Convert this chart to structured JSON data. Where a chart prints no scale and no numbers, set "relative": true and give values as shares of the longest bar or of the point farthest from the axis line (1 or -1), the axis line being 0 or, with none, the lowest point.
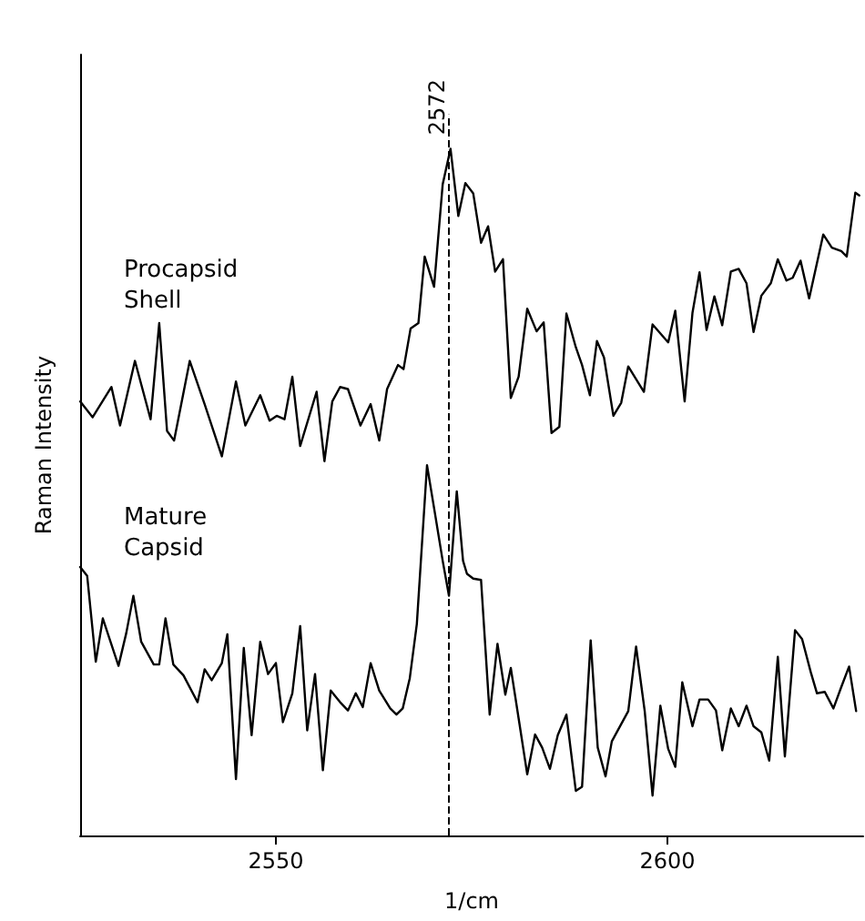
{
  "chart_data": {
    "type": "line",
    "xlabel": "1/cm",
    "ylabel": "Raman Intensity",
    "relative": true,
    "xlim": [
      2525,
      2625
    ],
    "xticks": [
      2550,
      2600
    ],
    "tick_labels": "x",
    "grid": false,
    "legend": false,
    "marker": "none",
    "line_style": "solid",
    "ref_lines": [
      {
        "axis": "x",
        "value": 2572,
        "label": "2572",
        "line_style": "dashed",
        "color": "#000000"
      }
    ],
    "series": [
      {
        "name": "Procapsid Shell",
        "color": "#000000",
        "x": [
          2525,
          2526.6,
          2529.0,
          2530.1,
          2532.0,
          2534.0,
          2535.1,
          2536.1,
          2537.0,
          2539.0,
          2540.9,
          2543.1,
          2544.9,
          2546.1,
          2548.0,
          2549.2,
          2550.1,
          2551.1,
          2552.1,
          2553.1,
          2555.2,
          2556.2,
          2557.2,
          2558.2,
          2559.2,
          2560.8,
          2562.1,
          2563.2,
          2564.2,
          2565.6,
          2566.3,
          2567.2,
          2568.2,
          2569.0,
          2570.2,
          2571.3,
          2572.3,
          2573.3,
          2574.2,
          2575.2,
          2576.2,
          2577.1,
          2578.0,
          2579.0,
          2580.0,
          2581.0,
          2582.1,
          2583.3,
          2584.2,
          2585.2,
          2586.2,
          2587.1,
          2588.3,
          2589.1,
          2590.1,
          2591.0,
          2591.9,
          2593.1,
          2594.1,
          2595.0,
          2597.0,
          2598.1,
          2600.1,
          2601.0,
          2602.2,
          2603.2,
          2604.1,
          2605.0,
          2606.0,
          2607.0,
          2608.1,
          2609.1,
          2610.1,
          2611.0,
          2612.0,
          2613.2,
          2614.1,
          2615.2,
          2616.0,
          2617.0,
          2618.1,
          2619.9,
          2621.0,
          2622.2,
          2622.9,
          2624.0,
          2624.5
        ],
        "values": [
          0.632,
          0.609,
          0.653,
          0.597,
          0.691,
          0.606,
          0.746,
          0.589,
          0.575,
          0.691,
          0.628,
          0.552,
          0.661,
          0.597,
          0.641,
          0.604,
          0.611,
          0.606,
          0.668,
          0.567,
          0.646,
          0.545,
          0.632,
          0.653,
          0.65,
          0.597,
          0.628,
          0.575,
          0.65,
          0.685,
          0.679,
          0.738,
          0.746,
          0.843,
          0.799,
          0.948,
          1.0,
          0.902,
          0.95,
          0.935,
          0.863,
          0.887,
          0.821,
          0.839,
          0.637,
          0.668,
          0.767,
          0.734,
          0.747,
          0.586,
          0.595,
          0.76,
          0.711,
          0.685,
          0.641,
          0.72,
          0.696,
          0.611,
          0.63,
          0.683,
          0.646,
          0.744,
          0.718,
          0.764,
          0.632,
          0.761,
          0.82,
          0.736,
          0.785,
          0.743,
          0.821,
          0.825,
          0.804,
          0.733,
          0.786,
          0.804,
          0.839,
          0.808,
          0.812,
          0.837,
          0.782,
          0.875,
          0.856,
          0.851,
          0.843,
          0.936,
          0.932
        ]
      },
      {
        "name": "Mature Capsid",
        "color": "#000000",
        "x": [
          2525,
          2525.9,
          2527.0,
          2527.9,
          2529.9,
          2530.9,
          2531.8,
          2532.8,
          2534.4,
          2535.1,
          2535.9,
          2536.9,
          2538.2,
          2540.0,
          2540.9,
          2541.8,
          2543.1,
          2543.8,
          2544.9,
          2545.9,
          2546.9,
          2548.0,
          2549.0,
          2550.0,
          2550.9,
          2552.1,
          2553.1,
          2554.0,
          2555.0,
          2556.0,
          2557.0,
          2558.2,
          2559.2,
          2560.2,
          2561.1,
          2562.1,
          2563.2,
          2564.6,
          2565.4,
          2566.2,
          2567.1,
          2568.0,
          2569.3,
          2570.3,
          2571.3,
          2572.1,
          2573.1,
          2573.9,
          2574.4,
          2575.2,
          2576.2,
          2577.3,
          2578.3,
          2579.3,
          2580.0,
          2581.1,
          2582.1,
          2583.1,
          2584.0,
          2585.0,
          2586.0,
          2587.1,
          2588.3,
          2589.1,
          2590.2,
          2591.1,
          2592.1,
          2592.9,
          2595.0,
          2596.0,
          2597.1,
          2598.1,
          2599.1,
          2600.1,
          2601.0,
          2601.9,
          2603.2,
          2604.1,
          2605.2,
          2606.2,
          2607.0,
          2608.1,
          2609.1,
          2610.1,
          2611.0,
          2612.0,
          2613.0,
          2614.1,
          2615.0,
          2616.3,
          2617.2,
          2618.3,
          2619.1,
          2620.1,
          2621.2,
          2622.2,
          2623.2,
          2624.1
        ],
        "values": [
          0.391,
          0.378,
          0.253,
          0.316,
          0.247,
          0.295,
          0.349,
          0.282,
          0.249,
          0.249,
          0.316,
          0.249,
          0.233,
          0.194,
          0.242,
          0.226,
          0.251,
          0.293,
          0.082,
          0.273,
          0.146,
          0.282,
          0.235,
          0.251,
          0.165,
          0.207,
          0.305,
          0.153,
          0.235,
          0.095,
          0.211,
          0.194,
          0.182,
          0.207,
          0.187,
          0.251,
          0.211,
          0.185,
          0.176,
          0.185,
          0.229,
          0.308,
          0.539,
          0.47,
          0.4,
          0.349,
          0.501,
          0.4,
          0.381,
          0.374,
          0.372,
          0.176,
          0.279,
          0.205,
          0.244,
          0.163,
          0.089,
          0.147,
          0.128,
          0.097,
          0.146,
          0.176,
          0.065,
          0.071,
          0.284,
          0.128,
          0.086,
          0.137,
          0.181,
          0.275,
          0.181,
          0.058,
          0.189,
          0.126,
          0.1,
          0.223,
          0.159,
          0.198,
          0.198,
          0.182,
          0.124,
          0.185,
          0.159,
          0.189,
          0.159,
          0.15,
          0.109,
          0.26,
          0.115,
          0.299,
          0.286,
          0.238,
          0.207,
          0.209,
          0.185,
          0.216,
          0.246,
          0.181
        ]
      }
    ]
  }
}
